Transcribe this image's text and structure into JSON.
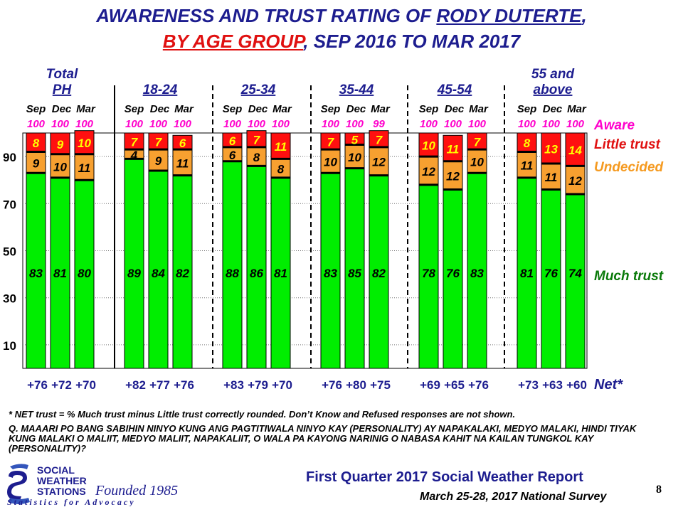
{
  "title": {
    "line1_prefix": "AWARENESS AND TRUST RATING OF ",
    "line1_name": "RODY DUTERTE",
    "line1_suffix": ",",
    "line2_red": "BY AGE GROUP",
    "line2_blue": ", SEP 2016 TO MAR 2017"
  },
  "legend": {
    "aware": "Aware",
    "little_trust": "Little trust",
    "undecided": "Undecided",
    "much_trust": "Much trust",
    "net": "Net*"
  },
  "colors": {
    "much_trust": "#00ee00",
    "undecided": "#f7a030",
    "little_trust": "#ff1010",
    "aware_text": "#ff00cc",
    "title_blue": "#1d1d8f",
    "title_red": "#e01010",
    "legend_red": "#e01010",
    "legend_orange": "#f59a20",
    "legend_green": "#0a7a0a"
  },
  "chart_data": {
    "type": "bar",
    "stacked": true,
    "ylim": [
      0,
      100
    ],
    "yticks": [
      "10",
      "30",
      "50",
      "70",
      "90"
    ],
    "series_order": [
      "Much trust",
      "Undecided",
      "Little trust"
    ],
    "groups": [
      {
        "name_lines": [
          "Total",
          "PH"
        ],
        "months": [
          "Sep",
          "Dec",
          "Mar"
        ],
        "aware": [
          "100",
          "100",
          "100"
        ],
        "much": [
          83,
          81,
          80
        ],
        "undecided": [
          9,
          10,
          11
        ],
        "little": [
          8,
          9,
          10
        ],
        "net": [
          "+76",
          "+72",
          "+70"
        ]
      },
      {
        "name_lines": [
          "18-24"
        ],
        "months": [
          "Sep",
          "Dec",
          "Mar"
        ],
        "aware": [
          "100",
          "100",
          "100"
        ],
        "much": [
          89,
          84,
          82
        ],
        "undecided": [
          4,
          9,
          11
        ],
        "little": [
          7,
          7,
          6
        ],
        "net": [
          "+82",
          "+77",
          "+76"
        ]
      },
      {
        "name_lines": [
          "25-34"
        ],
        "months": [
          "Sep",
          "Dec",
          "Mar"
        ],
        "aware": [
          "100",
          "100",
          "100"
        ],
        "much": [
          88,
          86,
          81
        ],
        "undecided": [
          6,
          8,
          8
        ],
        "little": [
          6,
          7,
          11
        ],
        "net": [
          "+83",
          "+79",
          "+70"
        ]
      },
      {
        "name_lines": [
          "35-44"
        ],
        "months": [
          "Sep",
          "Dec",
          "Mar"
        ],
        "aware": [
          "100",
          "100",
          "99"
        ],
        "much": [
          83,
          85,
          82
        ],
        "undecided": [
          10,
          10,
          12
        ],
        "little": [
          7,
          5,
          7
        ],
        "net": [
          "+76",
          "+80",
          "+75"
        ]
      },
      {
        "name_lines": [
          "45-54"
        ],
        "months": [
          "Sep",
          "Dec",
          "Mar"
        ],
        "aware": [
          "100",
          "100",
          "100"
        ],
        "much": [
          78,
          76,
          83
        ],
        "undecided": [
          12,
          12,
          10
        ],
        "little": [
          10,
          11,
          7
        ],
        "net": [
          "+69",
          "+65",
          "+76"
        ]
      },
      {
        "name_lines": [
          "55 and",
          "above"
        ],
        "months": [
          "Sep",
          "Dec",
          "Mar"
        ],
        "aware": [
          "100",
          "100",
          "100"
        ],
        "much": [
          81,
          76,
          74
        ],
        "undecided": [
          11,
          11,
          12
        ],
        "little": [
          8,
          13,
          14
        ],
        "net": [
          "+73",
          "+63",
          "+60"
        ]
      }
    ]
  },
  "footnote": "* NET trust = % Much trust minus Little trust correctly  rounded.  Don’t Know and Refused responses are not shown.",
  "question": "Q. MAAARI PO BANG SABIHIN NINYO KUNG ANG PAGTITIWALA NINYO KAY (PERSONALITY) AY NAPAKALAKI, MEDYO MALAKI, HINDI TIYAK KUNG MALAKI O MALIIT, MEDYO MALIIT, NAPAKALIIT, O WALA PA KAYONG NARINIG O NABASA KAHIT NA KAILAN TUNGKOL KAY (PERSONALITY)?",
  "logo": {
    "line1": "SOCIAL",
    "line2": "WEATHER",
    "line3": "STATIONS",
    "founded": "Founded 1985",
    "tagline": "Statistics for Advocacy"
  },
  "report_title": "First Quarter 2017 Social Weather Report",
  "survey": "March 25-28, 2017 National Survey",
  "page_number": "8"
}
